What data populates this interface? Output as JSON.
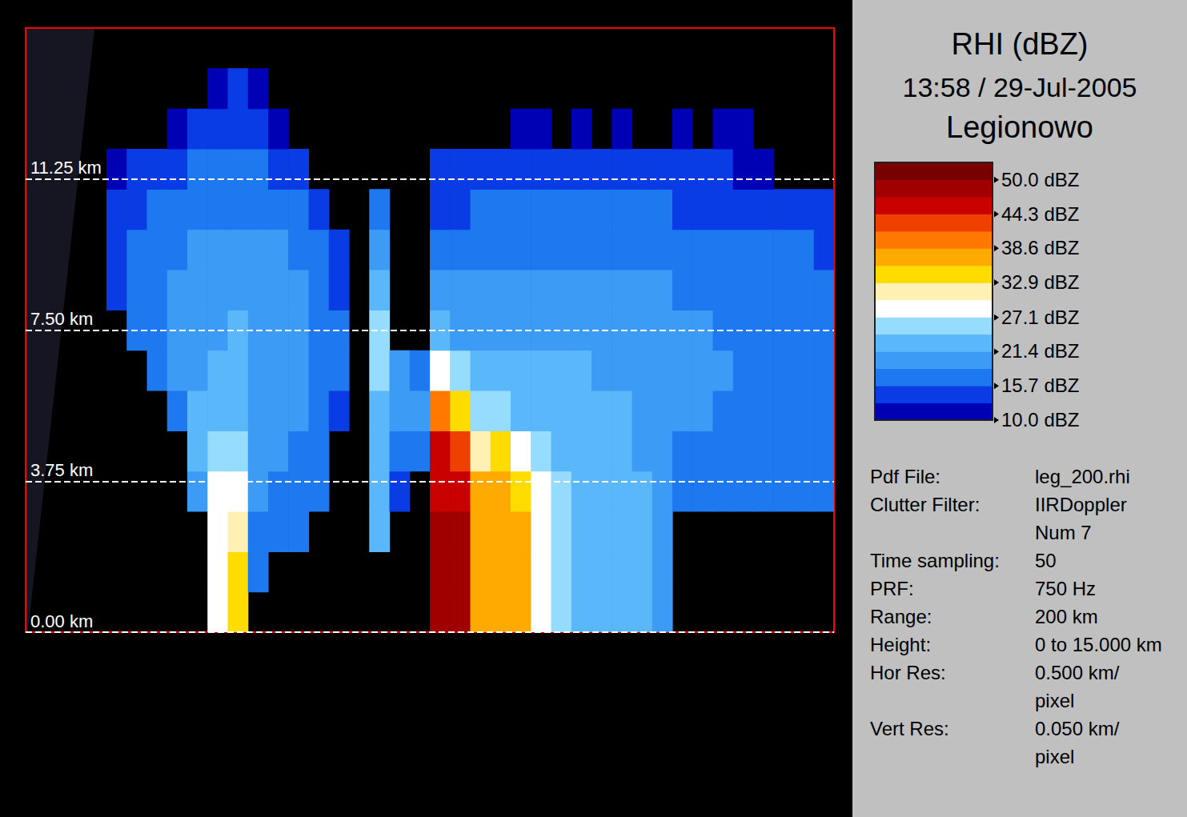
{
  "chart_data": {
    "type": "heatmap",
    "title": "RHI (dBZ)",
    "subtitle": "13:58 / 29-Jul-2005",
    "site": "Legionowo",
    "info": [
      {
        "label": "Pdf File:",
        "value": "leg_200.rhi"
      },
      {
        "label": "Clutter Filter:",
        "value": "IIRDoppler Num 7"
      },
      {
        "label": "Time sampling:",
        "value": "50"
      },
      {
        "label": "PRF:",
        "value": "750 Hz"
      },
      {
        "label": "Range:",
        "value": "200 km"
      },
      {
        "label": "Height:",
        "value": "0 to 15.000 km"
      },
      {
        "label": "Hor Res:",
        "value": "0.500 km/ pixel"
      },
      {
        "label": "Vert Res:",
        "value": "0.050 km/ pixel"
      }
    ],
    "xlim": [
      0,
      200
    ],
    "ylim": [
      0,
      15
    ],
    "yticks": [
      {
        "value": 0,
        "label": "0.00 km"
      },
      {
        "value": 3.75,
        "label": "3.75 km"
      },
      {
        "value": 7.5,
        "label": "7.50 km"
      },
      {
        "value": 11.25,
        "label": "11.25 km"
      }
    ],
    "tick_labels": "y",
    "grid": true,
    "x_bins": [
      0,
      5,
      10,
      15,
      20,
      25,
      30,
      35,
      40,
      45,
      50,
      55,
      60,
      65,
      70,
      75,
      80,
      85,
      90,
      95,
      100,
      105,
      110,
      115,
      120,
      125,
      130,
      135,
      140,
      145,
      150,
      155,
      160,
      165,
      170,
      175,
      180,
      185,
      190,
      195,
      200
    ],
    "y_bins": [
      0,
      1,
      2,
      3,
      4,
      5,
      6,
      7,
      8,
      9,
      10,
      11,
      12,
      13,
      14,
      15
    ],
    "values": [
      [
        null,
        null,
        null,
        null,
        null,
        null,
        null,
        null,
        null,
        30,
        33,
        null,
        null,
        null,
        null,
        null,
        null,
        null,
        null,
        null,
        48,
        50,
        38,
        36,
        36,
        30,
        25,
        24,
        24,
        22,
        22,
        20,
        null,
        null,
        null,
        null,
        null,
        null,
        null,
        null
      ],
      [
        null,
        null,
        null,
        null,
        null,
        null,
        null,
        null,
        null,
        30,
        33,
        18,
        null,
        null,
        null,
        null,
        null,
        null,
        null,
        null,
        48,
        50,
        38,
        36,
        36,
        30,
        25,
        24,
        24,
        22,
        22,
        20,
        null,
        null,
        null,
        null,
        null,
        null,
        null,
        null
      ],
      [
        null,
        null,
        null,
        null,
        null,
        null,
        null,
        null,
        null,
        28,
        32,
        18,
        16,
        16,
        null,
        null,
        null,
        22,
        null,
        null,
        48,
        48,
        38,
        38,
        36,
        30,
        25,
        24,
        24,
        22,
        22,
        20,
        null,
        null,
        null,
        null,
        null,
        null,
        null,
        null
      ],
      [
        null,
        null,
        null,
        null,
        null,
        null,
        null,
        null,
        20,
        28,
        30,
        20,
        18,
        18,
        16,
        null,
        null,
        22,
        15,
        null,
        47,
        46,
        36,
        36,
        35,
        30,
        25,
        24,
        23,
        22,
        22,
        21,
        16,
        16,
        16,
        16,
        16,
        16,
        16,
        16
      ],
      [
        null,
        null,
        null,
        null,
        null,
        null,
        null,
        null,
        22,
        27,
        25,
        20,
        20,
        18,
        17,
        null,
        null,
        23,
        18,
        18,
        45,
        42,
        32,
        33,
        30,
        27,
        24,
        23,
        22,
        22,
        21,
        21,
        18,
        18,
        17,
        17,
        17,
        17,
        16,
        16
      ],
      [
        null,
        null,
        null,
        null,
        null,
        null,
        null,
        18,
        22,
        24,
        22,
        20,
        20,
        19,
        17,
        15,
        null,
        24,
        20,
        20,
        40,
        35,
        26,
        25,
        24,
        23,
        23,
        22,
        22,
        22,
        21,
        21,
        19,
        19,
        18,
        18,
        18,
        17,
        17,
        16
      ],
      [
        null,
        null,
        null,
        null,
        null,
        null,
        18,
        19,
        21,
        22,
        22,
        21,
        20,
        19,
        18,
        16,
        null,
        25,
        20,
        18,
        30,
        26,
        22,
        22,
        22,
        22,
        22,
        22,
        21,
        21,
        21,
        21,
        19,
        19,
        19,
        18,
        18,
        18,
        17,
        17
      ],
      [
        null,
        null,
        null,
        null,
        null,
        16,
        18,
        19,
        20,
        21,
        22,
        21,
        20,
        19,
        18,
        16,
        null,
        26,
        null,
        null,
        22,
        20,
        20,
        20,
        21,
        21,
        21,
        21,
        20,
        20,
        20,
        20,
        19,
        19,
        18,
        18,
        18,
        18,
        17,
        17
      ],
      [
        null,
        null,
        null,
        null,
        15,
        17,
        18,
        19,
        20,
        21,
        21,
        20,
        20,
        19,
        18,
        15,
        null,
        22,
        null,
        null,
        19,
        19,
        19,
        19,
        20,
        20,
        20,
        20,
        20,
        19,
        19,
        19,
        18,
        18,
        18,
        17,
        17,
        17,
        16,
        16
      ],
      [
        null,
        null,
        null,
        null,
        14,
        16,
        17,
        18,
        19,
        20,
        20,
        19,
        19,
        18,
        17,
        14,
        null,
        20,
        null,
        null,
        17,
        17,
        18,
        18,
        18,
        18,
        18,
        18,
        18,
        18,
        18,
        18,
        17,
        17,
        17,
        17,
        16,
        16,
        16,
        15
      ],
      [
        null,
        null,
        null,
        null,
        13,
        15,
        16,
        17,
        18,
        18,
        18,
        18,
        17,
        16,
        15,
        null,
        null,
        18,
        null,
        null,
        15,
        15,
        16,
        16,
        16,
        16,
        16,
        16,
        16,
        16,
        16,
        16,
        15,
        15,
        15,
        15,
        14,
        14,
        14,
        14
      ],
      [
        null,
        null,
        null,
        null,
        12,
        13,
        14,
        15,
        16,
        16,
        17,
        16,
        15,
        14,
        null,
        null,
        null,
        null,
        null,
        null,
        13,
        13,
        13,
        13,
        14,
        14,
        14,
        14,
        14,
        14,
        13,
        13,
        13,
        13,
        13,
        12,
        12,
        null,
        null,
        null
      ],
      [
        null,
        null,
        null,
        null,
        null,
        null,
        null,
        12,
        13,
        14,
        14,
        13,
        12,
        null,
        null,
        null,
        null,
        null,
        null,
        null,
        null,
        null,
        null,
        null,
        11,
        11,
        null,
        11,
        null,
        11,
        null,
        null,
        11,
        null,
        11,
        11,
        null,
        null,
        null,
        null
      ],
      [
        null,
        null,
        null,
        null,
        null,
        null,
        null,
        null,
        null,
        12,
        13,
        12,
        null,
        null,
        null,
        null,
        null,
        null,
        null,
        null,
        null,
        null,
        null,
        null,
        null,
        null,
        null,
        null,
        null,
        null,
        null,
        null,
        null,
        null,
        null,
        null,
        null,
        null,
        null,
        null
      ],
      [
        null,
        null,
        null,
        null,
        null,
        null,
        null,
        null,
        null,
        null,
        null,
        null,
        null,
        null,
        null,
        null,
        null,
        null,
        null,
        null,
        null,
        null,
        null,
        null,
        null,
        null,
        null,
        null,
        null,
        null,
        null,
        null,
        null,
        null,
        null,
        null,
        null,
        null,
        null,
        null
      ]
    ],
    "colorbar": {
      "range": [
        10,
        52.9
      ],
      "ticks": [
        {
          "value": 50,
          "label": "50.0 dBZ"
        },
        {
          "value": 44.3,
          "label": "44.3 dBZ"
        },
        {
          "value": 38.6,
          "label": "38.6 dBZ"
        },
        {
          "value": 32.9,
          "label": "32.9 dBZ"
        },
        {
          "value": 27.1,
          "label": "27.1 dBZ"
        },
        {
          "value": 21.4,
          "label": "21.4 dBZ"
        },
        {
          "value": 15.7,
          "label": "15.7 dBZ"
        },
        {
          "value": 10,
          "label": "10.0 dBZ"
        }
      ],
      "colors": [
        "#0000b4",
        "#0a3ce6",
        "#1e78f0",
        "#3c9cf5",
        "#5ab8fa",
        "#96dcff",
        "#ffffff",
        "#fff0b4",
        "#ffdc00",
        "#ffaa00",
        "#ff7800",
        "#f04000",
        "#c80000",
        "#a00000",
        "#780000"
      ]
    }
  }
}
